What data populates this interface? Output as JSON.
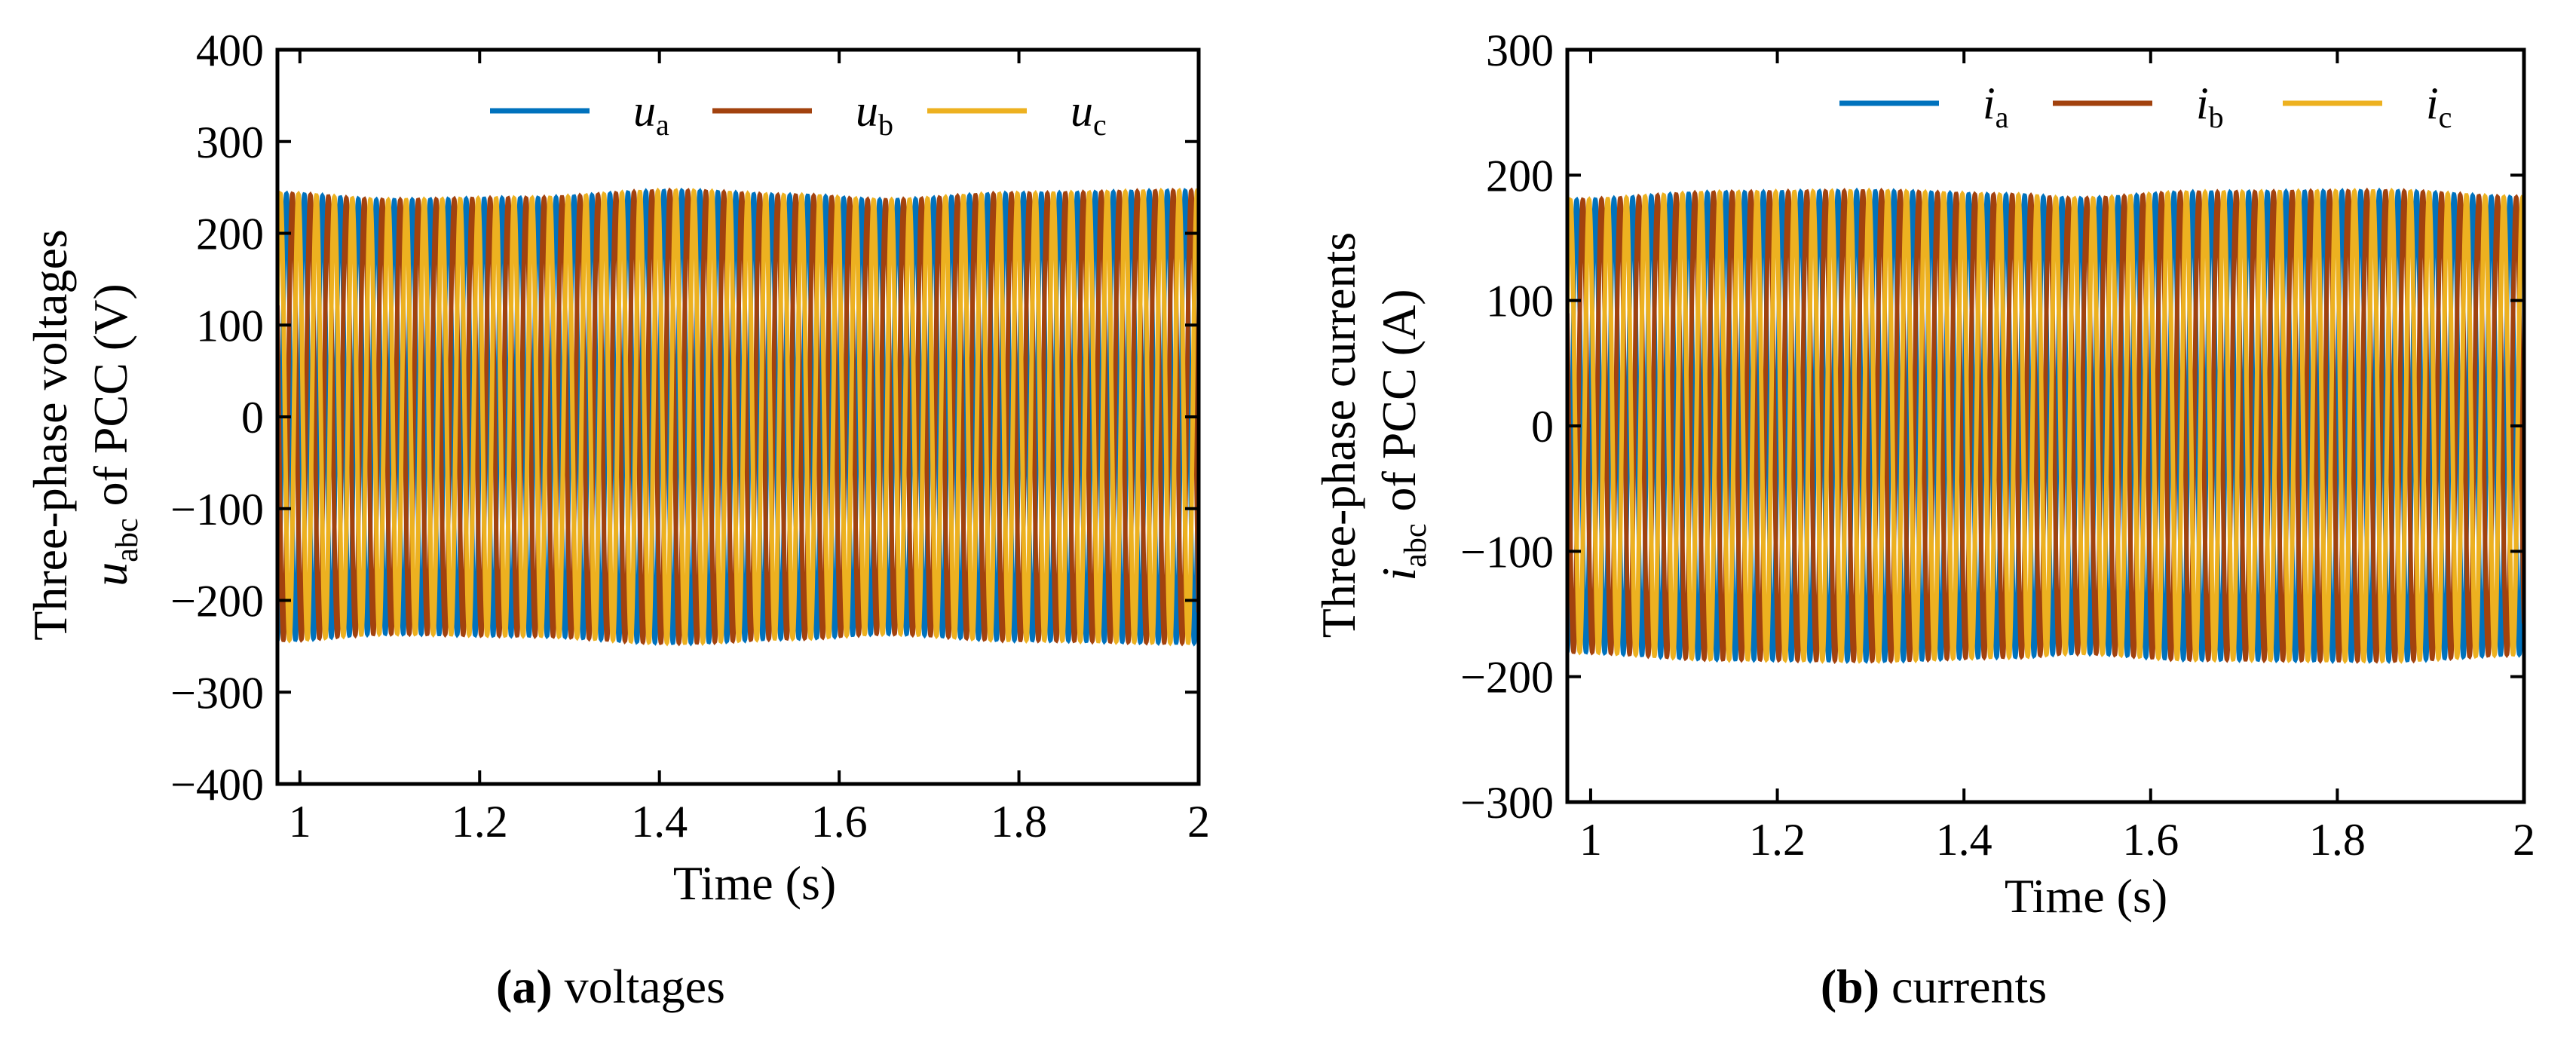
{
  "figure": {
    "panels": [
      {
        "id": "voltages",
        "caption_letter": "(a)",
        "caption_text": " voltages",
        "ylabel_line1": "Three-phase voltages",
        "ylabel_symbol": "u",
        "ylabel_sub": "abc",
        "ylabel_rest": " of PCC (V)",
        "xlabel": "Time (s)"
      },
      {
        "id": "currents",
        "caption_letter": "(b)",
        "caption_text": " currents",
        "ylabel_line1": "Three-phase currents",
        "ylabel_symbol": "i",
        "ylabel_sub": "abc",
        "ylabel_rest": " of PCC (A)",
        "xlabel": "Time (s)"
      }
    ]
  },
  "chart_data": [
    {
      "type": "line",
      "xlabel": "Time (s)",
      "ylabel": "Three-phase voltages u_abc of PCC (V)",
      "xlim": [
        0.975,
        2
      ],
      "ylim": [
        -400,
        400
      ],
      "x_ticks": [
        1,
        1.2,
        1.4,
        1.6,
        1.8,
        2
      ],
      "x_tick_labels": [
        "1",
        "1.2",
        "1.4",
        "1.6",
        "1.8",
        "2"
      ],
      "y_ticks": [
        -400,
        -300,
        -200,
        -100,
        0,
        100,
        200,
        300,
        400
      ],
      "y_tick_labels": [
        "−400",
        "−300",
        "−200",
        "−100",
        "0",
        "100",
        "200",
        "300",
        "400"
      ],
      "legend_position": "top-right",
      "frequency_hz": 50,
      "series": [
        {
          "name": "u",
          "sub": "a",
          "color": "#0072BD",
          "phase_deg": 0,
          "amplitude": 242
        },
        {
          "name": "u",
          "sub": "b",
          "color": "#A2420E",
          "phase_deg": -120,
          "amplitude": 242
        },
        {
          "name": "u",
          "sub": "c",
          "color": "#EDB120",
          "phase_deg": 120,
          "amplitude": 242
        }
      ],
      "envelope": {
        "x": [
          0.975,
          1.1,
          1.25,
          1.42,
          1.55,
          1.65,
          1.8,
          2.0
        ],
        "y": [
          243,
          236,
          238,
          246,
          241,
          236,
          243,
          246
        ]
      }
    },
    {
      "type": "line",
      "xlabel": "Time (s)",
      "ylabel": "Three-phase currents i_abc of PCC (A)",
      "xlim": [
        0.975,
        2
      ],
      "ylim": [
        -300,
        300
      ],
      "x_ticks": [
        1,
        1.2,
        1.4,
        1.6,
        1.8,
        2
      ],
      "x_tick_labels": [
        "1",
        "1.2",
        "1.4",
        "1.6",
        "1.8",
        "2"
      ],
      "y_ticks": [
        -300,
        -200,
        -100,
        0,
        100,
        200,
        300
      ],
      "y_tick_labels": [
        "−300",
        "−200",
        "−100",
        "0",
        "100",
        "200",
        "300"
      ],
      "legend_position": "top-right",
      "frequency_hz": 50,
      "series": [
        {
          "name": "i",
          "sub": "a",
          "color": "#0072BD",
          "phase_deg": 0,
          "amplitude": 183
        },
        {
          "name": "i",
          "sub": "b",
          "color": "#A2420E",
          "phase_deg": -120,
          "amplitude": 183
        },
        {
          "name": "i",
          "sub": "c",
          "color": "#EDB120",
          "phase_deg": 120,
          "amplitude": 183
        }
      ],
      "envelope": {
        "x": [
          0.975,
          1.15,
          1.3,
          1.45,
          1.52,
          1.65,
          1.85,
          2.0
        ],
        "y": [
          180,
          186,
          187,
          184,
          181,
          186,
          187,
          182
        ]
      }
    }
  ]
}
